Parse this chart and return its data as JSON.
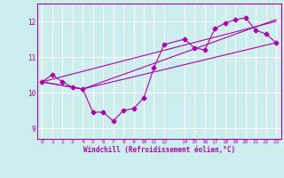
{
  "xlabel": "Windchill (Refroidissement éolien,°C)",
  "bg_color": "#cceeee",
  "line_color": "#aa00aa",
  "grid_color": "#ffffff",
  "xlim": [
    -0.5,
    23.5
  ],
  "ylim": [
    8.7,
    12.5
  ],
  "yticks": [
    9,
    10,
    11,
    12
  ],
  "xticks": [
    0,
    1,
    2,
    3,
    4,
    5,
    6,
    7,
    8,
    9,
    10,
    11,
    12,
    14,
    15,
    16,
    17,
    18,
    19,
    20,
    21,
    22,
    23
  ],
  "xtick_labels": [
    "0",
    "1",
    "2",
    "3",
    "4",
    "5",
    "6",
    "7",
    "8",
    "9",
    "10",
    "11",
    "12",
    "14",
    "15",
    "16",
    "17",
    "18",
    "19",
    "20",
    "21",
    "22",
    "23"
  ],
  "line1_x": [
    0,
    1,
    2,
    3,
    4,
    5,
    6,
    7,
    8,
    9,
    10,
    11,
    12,
    14,
    15,
    16,
    17,
    18,
    19,
    20,
    21,
    22,
    23
  ],
  "line1_y": [
    10.3,
    10.5,
    10.3,
    10.15,
    10.1,
    9.45,
    9.45,
    9.2,
    9.5,
    9.55,
    9.85,
    10.7,
    11.35,
    11.5,
    11.25,
    11.2,
    11.8,
    11.95,
    12.05,
    12.1,
    11.75,
    11.65,
    11.4
  ],
  "line2_x": [
    0,
    4,
    23
  ],
  "line2_y": [
    10.3,
    10.1,
    11.4
  ],
  "line3_x": [
    0,
    4,
    23
  ],
  "line3_y": [
    10.3,
    10.1,
    12.05
  ],
  "line4_x": [
    0,
    23
  ],
  "line4_y": [
    10.3,
    12.0
  ]
}
